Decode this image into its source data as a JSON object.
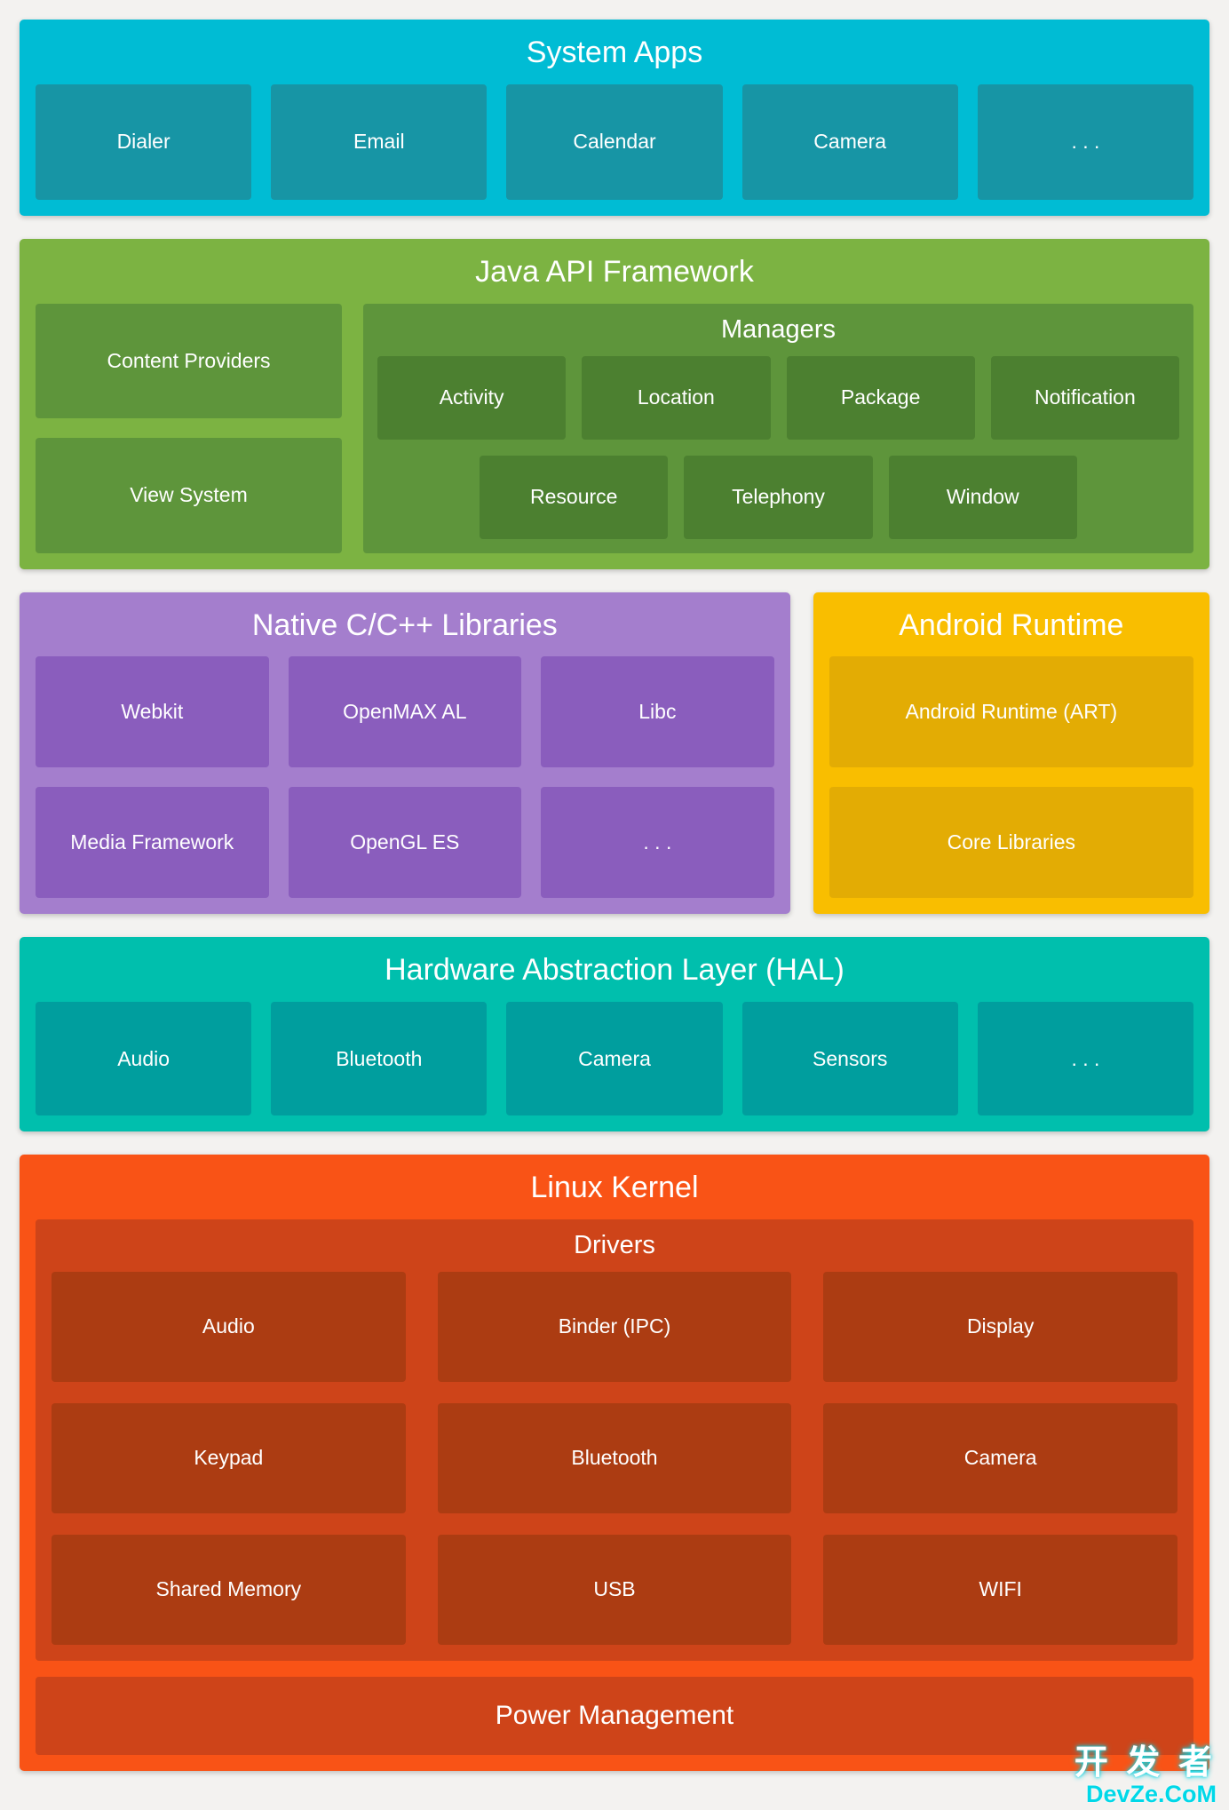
{
  "colors": {
    "page-bg": "#F3F2F0",
    "system-band": "#00BCD4",
    "system-box": "#1795A5",
    "java-band": "#7CB342",
    "java-box": "#5E953B",
    "java-chip": "#4C8030",
    "native-band": "#A47ECD",
    "native-box": "#8A5DBD",
    "runtime-band": "#F9BE00",
    "runtime-box": "#E3AC04",
    "hal-band": "#00BFAD",
    "hal-box": "#009E9E",
    "kernel-band": "#F95316",
    "kernel-box": "#CE4419",
    "kernel-chip": "#AC3C12",
    "watermark": "#00D8E8"
  },
  "sections": {
    "system_apps": {
      "title": "System Apps",
      "items": [
        "Dialer",
        "Email",
        "Calendar",
        "Camera",
        ". . ."
      ]
    },
    "java_api": {
      "title": "Java API Framework",
      "left_items": [
        "Content Providers",
        "View System"
      ],
      "managers": {
        "title": "Managers",
        "row1": [
          "Activity",
          "Location",
          "Package",
          "Notification"
        ],
        "row2": [
          "Resource",
          "Telephony",
          "Window"
        ]
      }
    },
    "native_libs": {
      "title": "Native C/C++ Libraries",
      "items": [
        "Webkit",
        "OpenMAX AL",
        "Libc",
        "Media Framework",
        "OpenGL ES",
        ". . ."
      ]
    },
    "android_runtime": {
      "title": "Android Runtime",
      "items": [
        "Android Runtime (ART)",
        "Core Libraries"
      ]
    },
    "hal": {
      "title": "Hardware Abstraction Layer (HAL)",
      "items": [
        "Audio",
        "Bluetooth",
        "Camera",
        "Sensors",
        ". . ."
      ]
    },
    "linux_kernel": {
      "title": "Linux Kernel",
      "drivers": {
        "title": "Drivers",
        "items": [
          "Audio",
          "Binder (IPC)",
          "Display",
          "Keypad",
          "Bluetooth",
          "Camera",
          "Shared Memory",
          "USB",
          "WIFI"
        ]
      },
      "power": "Power Management"
    }
  },
  "watermark": {
    "line1": "开 发 者",
    "line2": "DevZe.CoM"
  }
}
